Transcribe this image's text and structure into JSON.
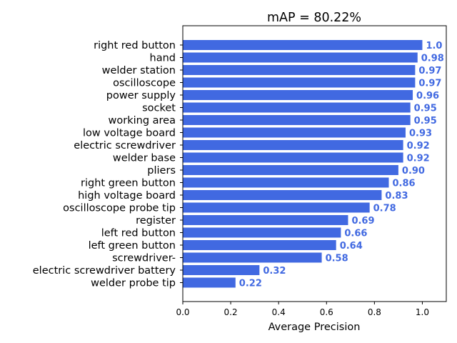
{
  "chart_data": {
    "type": "bar",
    "orientation": "horizontal",
    "title": "mAP = 80.22%",
    "xlabel": "Average Precision",
    "ylabel": "",
    "xlim": [
      0,
      1.1
    ],
    "xticks": [
      "0.0",
      "0.2",
      "0.4",
      "0.6",
      "0.8",
      "1.0"
    ],
    "bar_color": "#4169e1",
    "label_color": "#4169e1",
    "grid": false,
    "categories": [
      "right red button",
      "hand",
      "welder station",
      "oscilloscope",
      "power supply",
      "socket",
      "working area",
      "low voltage board",
      "electric screwdriver",
      "welder base",
      "pliers",
      "right green button",
      "high voltage board",
      "oscilloscope probe tip",
      "register",
      "left red button",
      "left green button",
      "screwdriver-",
      "electric screwdriver battery",
      "welder probe tip"
    ],
    "values": [
      1.0,
      0.98,
      0.97,
      0.97,
      0.96,
      0.95,
      0.95,
      0.93,
      0.92,
      0.92,
      0.9,
      0.86,
      0.83,
      0.78,
      0.69,
      0.66,
      0.64,
      0.58,
      0.32,
      0.22
    ],
    "value_labels": [
      "1.0",
      "0.98",
      "0.97",
      "0.97",
      "0.96",
      "0.95",
      "0.95",
      "0.93",
      "0.92",
      "0.92",
      "0.90",
      "0.86",
      "0.83",
      "0.78",
      "0.69",
      "0.66",
      "0.64",
      "0.58",
      "0.32",
      "0.22"
    ]
  }
}
